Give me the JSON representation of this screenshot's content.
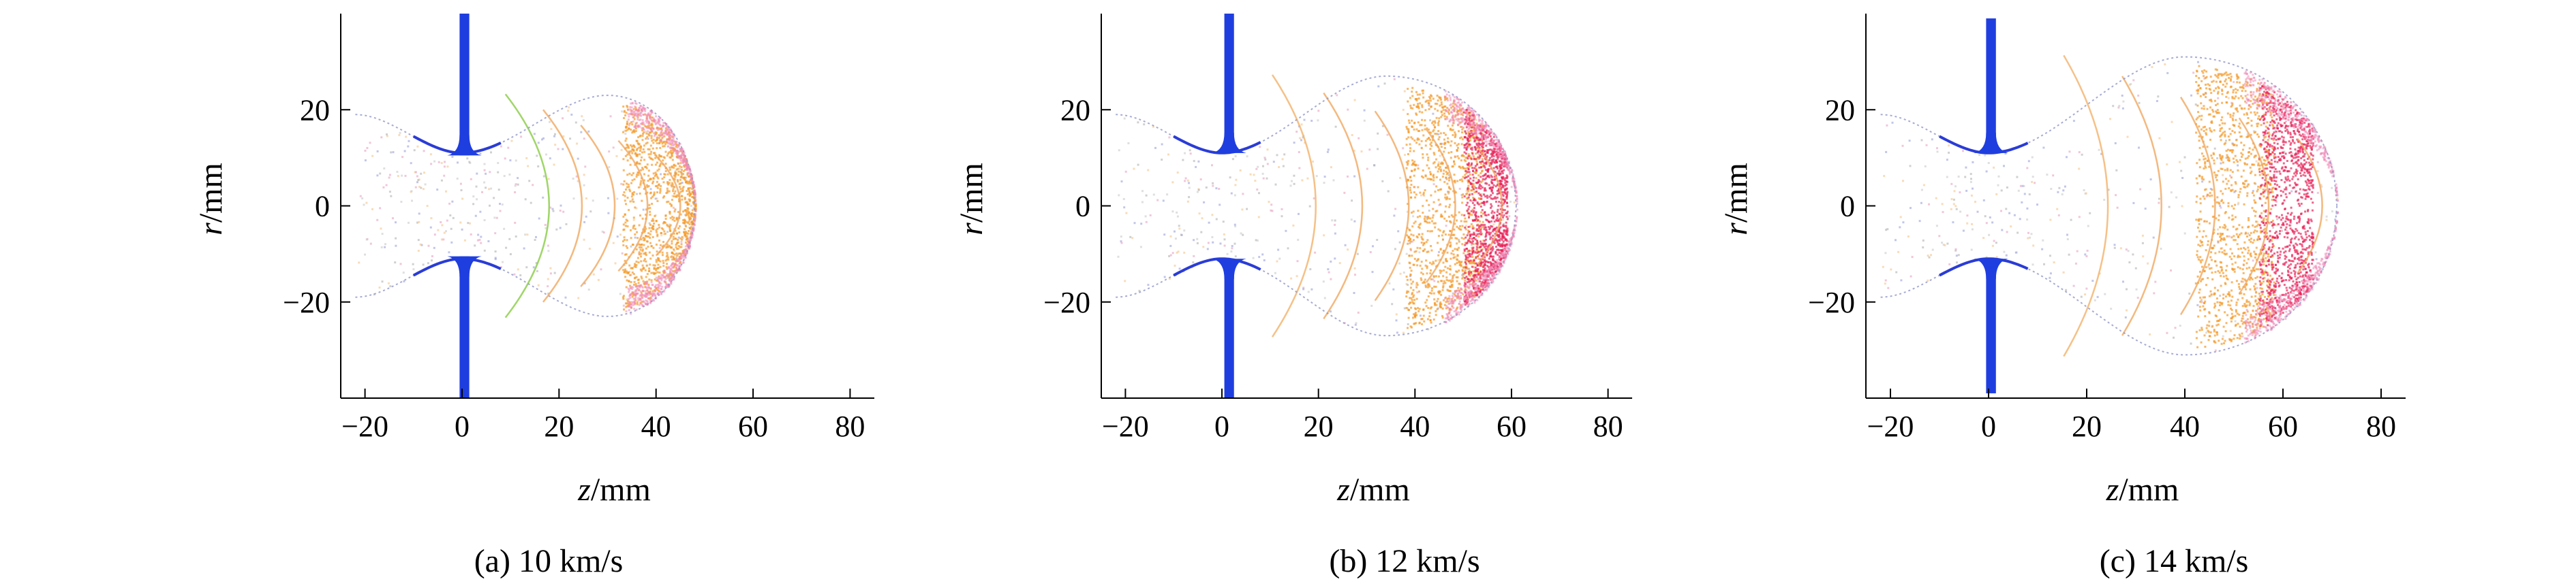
{
  "figure": {
    "panels": [
      {
        "caption": "(a) 10 km/s"
      },
      {
        "caption": "(b) 12 km/s"
      },
      {
        "caption": "(c) 14  km/s"
      }
    ]
  },
  "chart_data": [
    {
      "type": "scatter",
      "caption": "(a) 10 km/s",
      "xlabel": {
        "symbol": "z",
        "unit": "/mm"
      },
      "ylabel": {
        "symbol": "r",
        "unit": "/mm"
      },
      "xlim": [
        -25,
        85
      ],
      "ylim": [
        -40,
        40
      ],
      "xticks": [
        -20,
        0,
        20,
        40,
        60,
        80
      ],
      "yticks": [
        -20,
        0,
        20
      ],
      "grid": false,
      "plate": {
        "z_center": 0.5,
        "thickness": 2,
        "hole_radius": 10.5,
        "extent": 40
      },
      "cloud": {
        "z_base": -22,
        "r_base": 19,
        "neck_z": 0,
        "neck_r": 11,
        "max_z": 30,
        "max_r": 23,
        "front_z": 48,
        "max_color": "#2233dd",
        "contour_color": "#88cc44"
      },
      "regions": [
        {
          "name": "orange",
          "color": "#f39a2a",
          "z_start": 33,
          "z_end": 48
        },
        {
          "name": "pink",
          "color": "#f08ab8",
          "z_start": 34,
          "z_end": 48
        }
      ]
    },
    {
      "type": "scatter",
      "caption": "(b) 12 km/s",
      "xlabel": {
        "symbol": "z",
        "unit": "/mm"
      },
      "ylabel": {
        "symbol": "r",
        "unit": "/mm"
      },
      "xlim": [
        -25,
        85
      ],
      "ylim": [
        -40,
        40
      ],
      "xticks": [
        -20,
        0,
        20,
        40,
        60,
        80
      ],
      "yticks": [
        -20,
        0,
        20
      ],
      "grid": false,
      "plate": {
        "z_center": 1.5,
        "thickness": 2,
        "hole_radius": 11,
        "extent": 40
      },
      "cloud": {
        "z_base": -22,
        "r_base": 19,
        "neck_z": 0,
        "neck_r": 11,
        "max_z": 34,
        "max_r": 27,
        "front_z": 61,
        "max_color": "#6666dd",
        "contour_color": "#f3b16a"
      },
      "regions": [
        {
          "name": "orange",
          "color": "#f39a2a",
          "z_start": 38,
          "z_end": 54
        },
        {
          "name": "red",
          "color": "#e8245a",
          "z_start": 50,
          "z_end": 59
        },
        {
          "name": "pink",
          "color": "#f08ab8",
          "z_start": 46,
          "z_end": 61
        }
      ]
    },
    {
      "type": "scatter",
      "caption": "(c) 14  km/s",
      "xlabel": {
        "symbol": "z",
        "unit": "/mm"
      },
      "ylabel": {
        "symbol": "r",
        "unit": "/mm"
      },
      "xlim": [
        -25,
        85
      ],
      "ylim": [
        -40,
        40
      ],
      "xticks": [
        -20,
        0,
        20,
        40,
        60,
        80
      ],
      "yticks": [
        -20,
        0,
        20
      ],
      "grid": false,
      "plate": {
        "z_center": 0.5,
        "thickness": 2,
        "hole_radius": 11,
        "extent": 39
      },
      "cloud": {
        "z_base": -22,
        "r_base": 19,
        "neck_z": 0,
        "neck_r": 11,
        "max_z": 40,
        "max_r": 31,
        "front_z": 71,
        "max_color": "#9999dd",
        "contour_color": "#f3b16a"
      },
      "regions": [
        {
          "name": "orange",
          "color": "#f39a2a",
          "z_start": 42,
          "z_end": 58
        },
        {
          "name": "red",
          "color": "#e8245a",
          "z_start": 55,
          "z_end": 66
        },
        {
          "name": "pink",
          "color": "#f08ab8",
          "z_start": 52,
          "z_end": 71
        }
      ]
    }
  ]
}
